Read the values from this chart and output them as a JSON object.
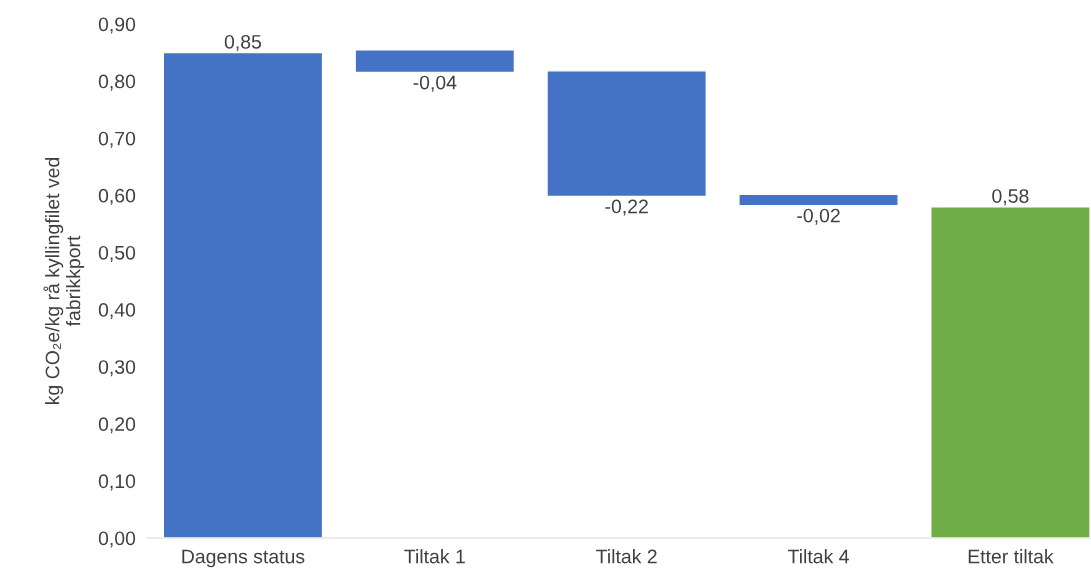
{
  "chart_data": {
    "type": "bar",
    "ylabel": "kg CO₂e/kg rå kyllingfilet ved\nfabrikkport",
    "categories": [
      "Dagens status",
      "Tiltak 1",
      "Tiltak 2",
      "Tiltak 4",
      "Etter tiltak"
    ],
    "values": [
      0.85,
      -0.04,
      -0.22,
      -0.02,
      0.58
    ],
    "base": [
      0,
      0.855,
      0.818,
      0.602,
      0
    ],
    "colors": [
      "#4472c4",
      "#4472c4",
      "#4472c4",
      "#4472c4",
      "#70ad47"
    ],
    "value_labels": [
      "0,85",
      "-0,04",
      "-0,22",
      "-0,02",
      "0,58"
    ],
    "ylim": [
      0,
      0.9
    ],
    "yticks": [
      {
        "value": 0,
        "label": "0,00"
      },
      {
        "value": 0.1,
        "label": "0,10"
      },
      {
        "value": 0.2,
        "label": "0,20"
      },
      {
        "value": 0.3,
        "label": "0,30"
      },
      {
        "value": 0.4,
        "label": "0,40"
      },
      {
        "value": 0.5,
        "label": "0,50"
      },
      {
        "value": 0.6,
        "label": "0,60"
      },
      {
        "value": 0.7,
        "label": "0,70"
      },
      {
        "value": 0.8,
        "label": "0,80"
      },
      {
        "value": 0.9,
        "label": "0,90"
      }
    ],
    "grid": false,
    "legend": false
  }
}
